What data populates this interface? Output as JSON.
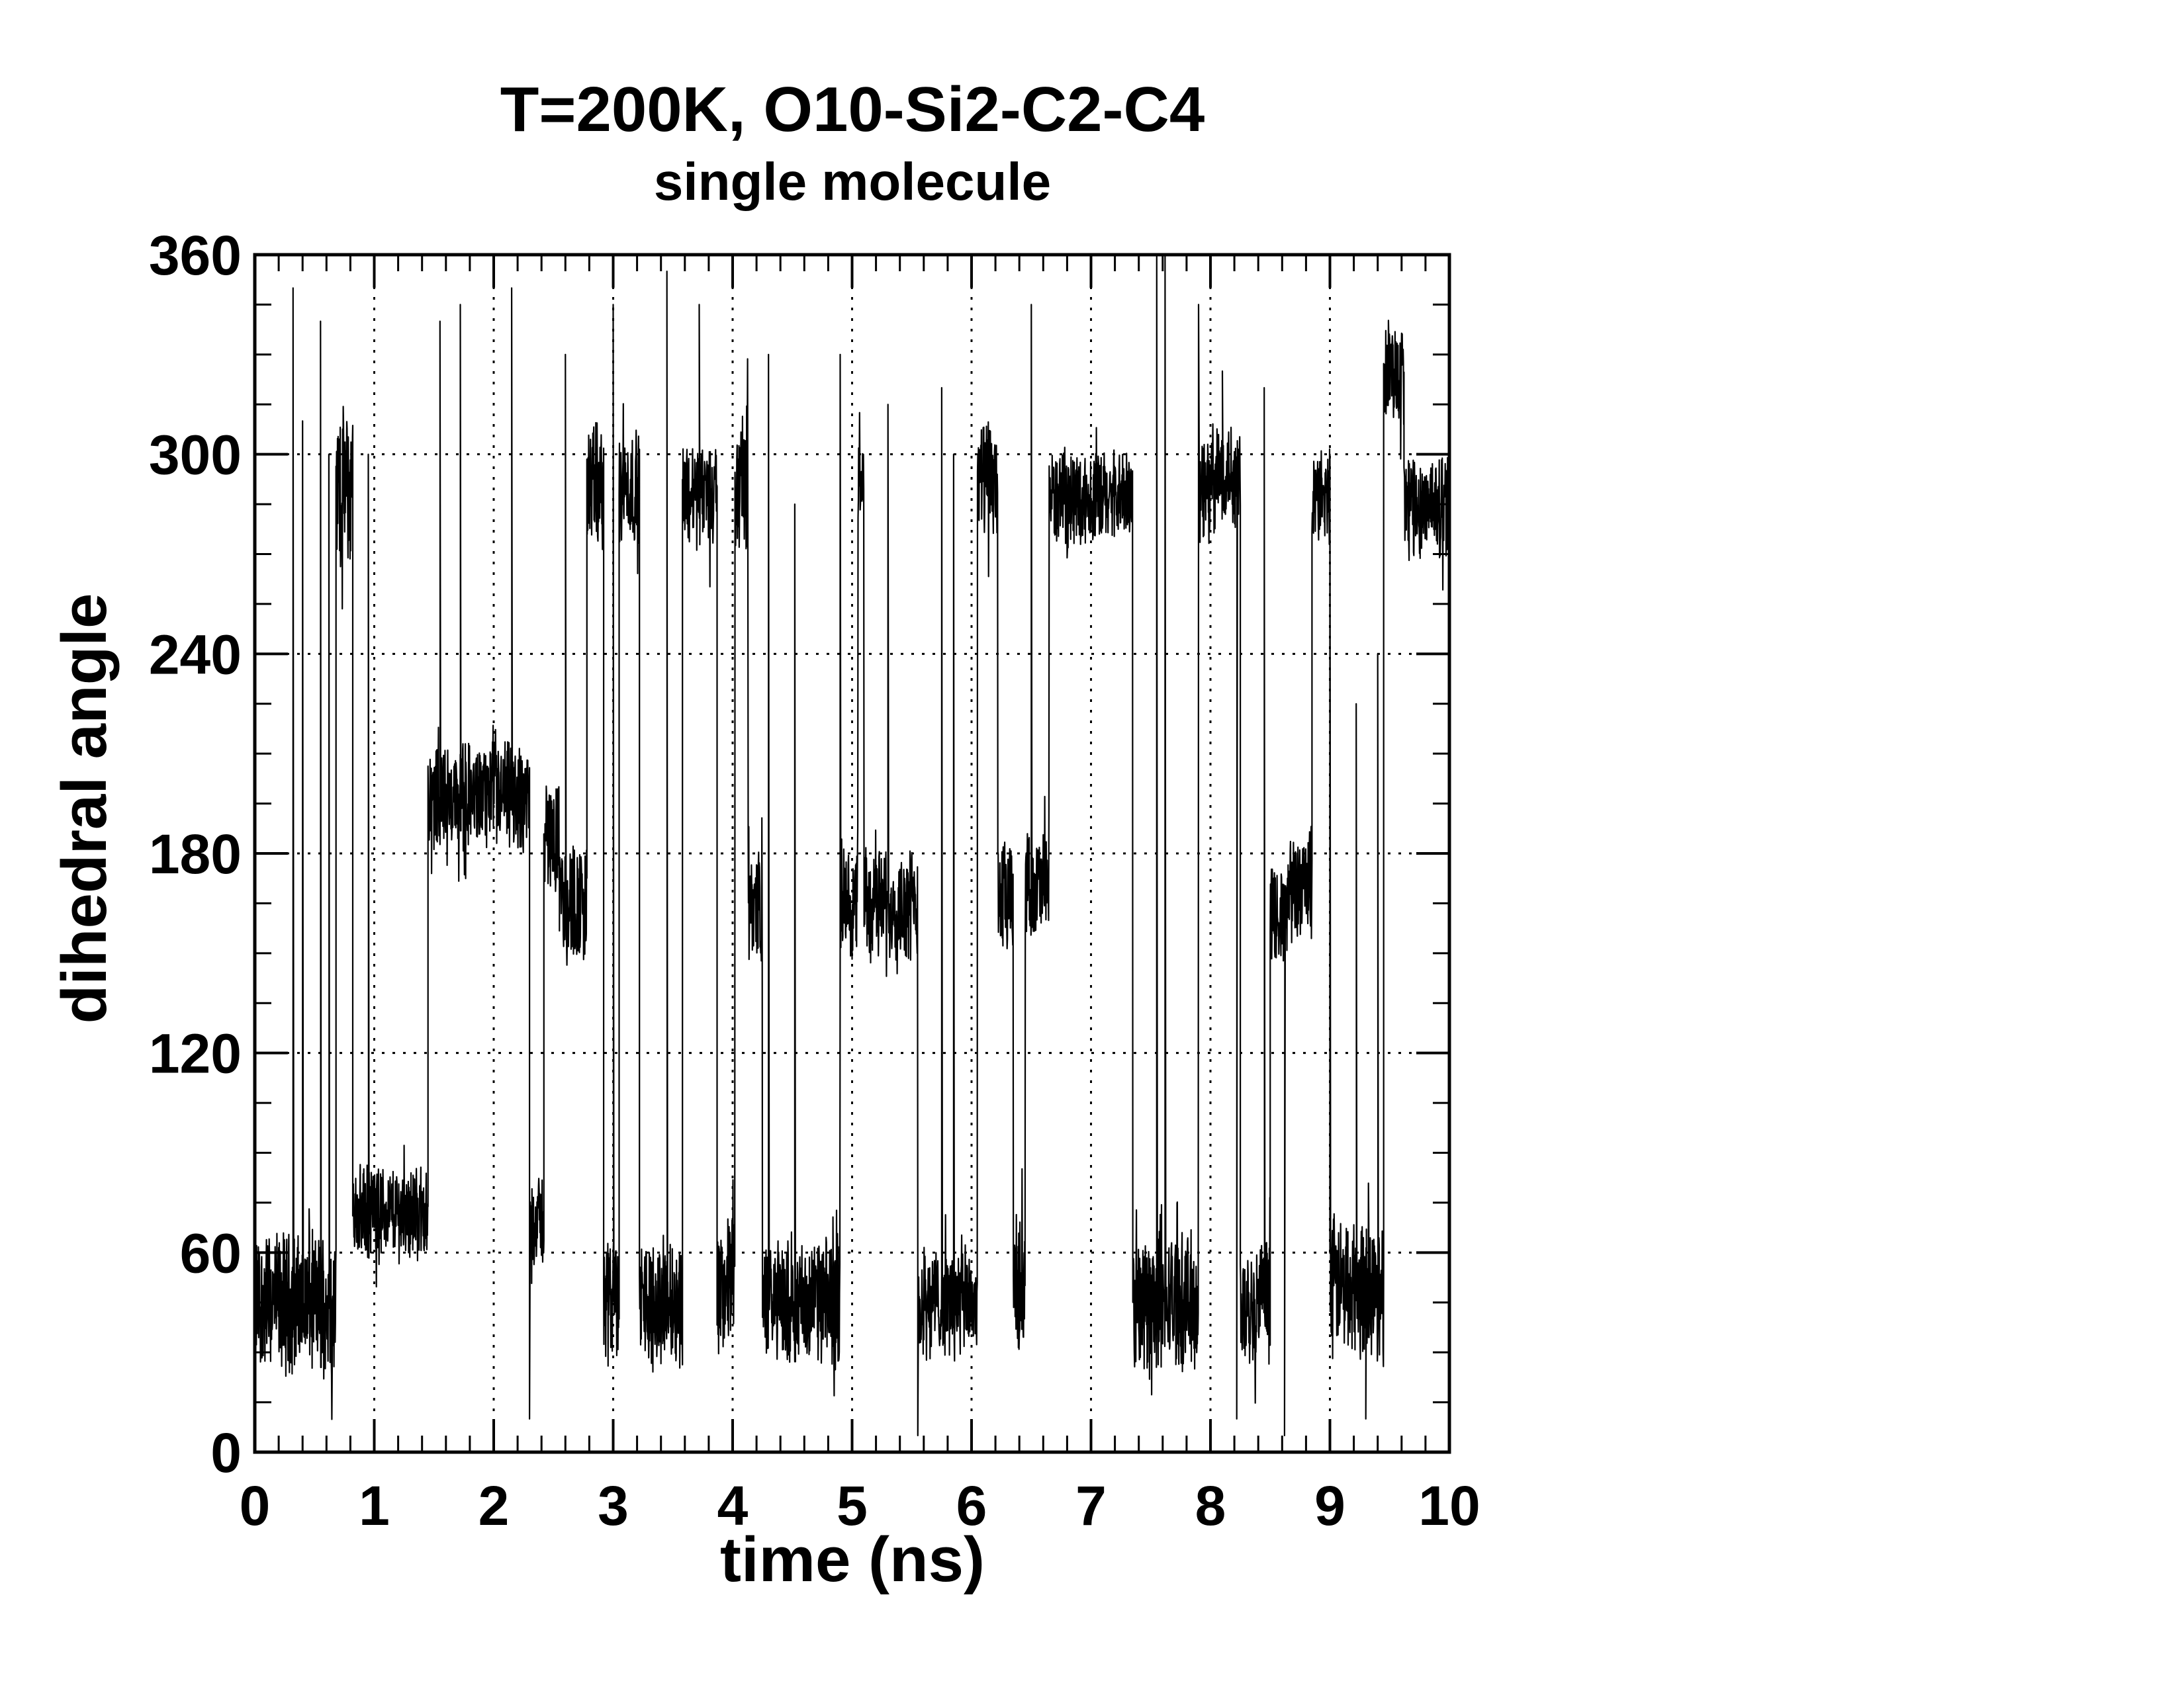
{
  "chart_data": {
    "type": "line",
    "title": "T=200K, O10-Si2-C2-C4",
    "subtitle": "single molecule",
    "xlabel": "time (ns)",
    "ylabel": "dihedral angle",
    "xlim": [
      0,
      10
    ],
    "ylim": [
      0,
      360
    ],
    "xticks": [
      "0",
      "1",
      "2",
      "3",
      "4",
      "5",
      "6",
      "7",
      "8",
      "9",
      "10"
    ],
    "yticks": [
      "0",
      "60",
      "120",
      "180",
      "240",
      "300",
      "360"
    ],
    "grid": true,
    "line_color": "#000000",
    "series": [
      {
        "name": "",
        "segments": [
          {
            "start": 0.0,
            "end": 0.68,
            "mean": 45,
            "spread": 18
          },
          {
            "start": 0.68,
            "end": 0.82,
            "mean": 290,
            "spread": 20
          },
          {
            "start": 0.82,
            "end": 1.45,
            "mean": 72,
            "spread": 12
          },
          {
            "start": 1.45,
            "end": 2.3,
            "mean": 197,
            "spread": 14
          },
          {
            "start": 2.3,
            "end": 2.42,
            "mean": 70,
            "spread": 12
          },
          {
            "start": 2.42,
            "end": 2.55,
            "mean": 185,
            "spread": 14
          },
          {
            "start": 2.55,
            "end": 2.78,
            "mean": 165,
            "spread": 16
          },
          {
            "start": 2.78,
            "end": 2.92,
            "mean": 290,
            "spread": 16
          },
          {
            "start": 2.92,
            "end": 3.05,
            "mean": 45,
            "spread": 18
          },
          {
            "start": 3.05,
            "end": 3.22,
            "mean": 290,
            "spread": 14
          },
          {
            "start": 3.22,
            "end": 3.58,
            "mean": 45,
            "spread": 16
          },
          {
            "start": 3.58,
            "end": 3.87,
            "mean": 288,
            "spread": 14
          },
          {
            "start": 3.87,
            "end": 4.02,
            "mean": 50,
            "spread": 18
          },
          {
            "start": 4.02,
            "end": 4.13,
            "mean": 290,
            "spread": 20
          },
          {
            "start": 4.13,
            "end": 4.25,
            "mean": 165,
            "spread": 16
          },
          {
            "start": 4.25,
            "end": 4.9,
            "mean": 45,
            "spread": 16
          },
          {
            "start": 4.9,
            "end": 5.05,
            "mean": 165,
            "spread": 14
          },
          {
            "start": 5.05,
            "end": 5.1,
            "mean": 290,
            "spread": 12
          },
          {
            "start": 5.1,
            "end": 5.55,
            "mean": 165,
            "spread": 14
          },
          {
            "start": 5.55,
            "end": 6.05,
            "mean": 45,
            "spread": 14
          },
          {
            "start": 6.05,
            "end": 6.22,
            "mean": 292,
            "spread": 16
          },
          {
            "start": 6.22,
            "end": 6.35,
            "mean": 165,
            "spread": 16
          },
          {
            "start": 6.35,
            "end": 6.45,
            "mean": 50,
            "spread": 18
          },
          {
            "start": 6.45,
            "end": 6.65,
            "mean": 170,
            "spread": 14
          },
          {
            "start": 6.65,
            "end": 7.35,
            "mean": 287,
            "spread": 12
          },
          {
            "start": 7.35,
            "end": 7.9,
            "mean": 45,
            "spread": 18
          },
          {
            "start": 7.9,
            "end": 8.05,
            "mean": 290,
            "spread": 16
          },
          {
            "start": 8.05,
            "end": 8.25,
            "mean": 295,
            "spread": 14
          },
          {
            "start": 8.25,
            "end": 8.5,
            "mean": 45,
            "spread": 16
          },
          {
            "start": 8.5,
            "end": 8.65,
            "mean": 160,
            "spread": 14
          },
          {
            "start": 8.65,
            "end": 8.85,
            "mean": 170,
            "spread": 14
          },
          {
            "start": 8.85,
            "end": 9.0,
            "mean": 287,
            "spread": 12
          },
          {
            "start": 9.0,
            "end": 9.45,
            "mean": 50,
            "spread": 18
          },
          {
            "start": 9.45,
            "end": 9.62,
            "mean": 325,
            "spread": 14
          },
          {
            "start": 9.62,
            "end": 10.0,
            "mean": 285,
            "spread": 14
          }
        ],
        "spikes": [
          {
            "x": 0.32,
            "y": 350
          },
          {
            "x": 0.4,
            "y": 310
          },
          {
            "x": 0.55,
            "y": 340
          },
          {
            "x": 0.62,
            "y": 300
          },
          {
            "x": 0.95,
            "y": 300
          },
          {
            "x": 1.55,
            "y": 340
          },
          {
            "x": 1.72,
            "y": 345
          },
          {
            "x": 2.15,
            "y": 350
          },
          {
            "x": 2.3,
            "y": 10
          },
          {
            "x": 2.6,
            "y": 330
          },
          {
            "x": 3.0,
            "y": 345
          },
          {
            "x": 3.45,
            "y": 355
          },
          {
            "x": 3.72,
            "y": 345
          },
          {
            "x": 4.3,
            "y": 330
          },
          {
            "x": 4.52,
            "y": 285
          },
          {
            "x": 4.9,
            "y": 330
          },
          {
            "x": 5.3,
            "y": 315
          },
          {
            "x": 5.55,
            "y": 5
          },
          {
            "x": 5.75,
            "y": 320
          },
          {
            "x": 5.85,
            "y": 300
          },
          {
            "x": 6.5,
            "y": 345
          },
          {
            "x": 7.1,
            "y": 285
          },
          {
            "x": 7.55,
            "y": 360
          },
          {
            "x": 7.62,
            "y": 360
          },
          {
            "x": 7.9,
            "y": 345
          },
          {
            "x": 8.1,
            "y": 325
          },
          {
            "x": 8.22,
            "y": 10
          },
          {
            "x": 8.45,
            "y": 320
          },
          {
            "x": 8.62,
            "y": 5
          },
          {
            "x": 9.0,
            "y": 300
          },
          {
            "x": 9.22,
            "y": 225
          },
          {
            "x": 9.3,
            "y": 10
          },
          {
            "x": 9.4,
            "y": 240
          }
        ]
      }
    ]
  }
}
